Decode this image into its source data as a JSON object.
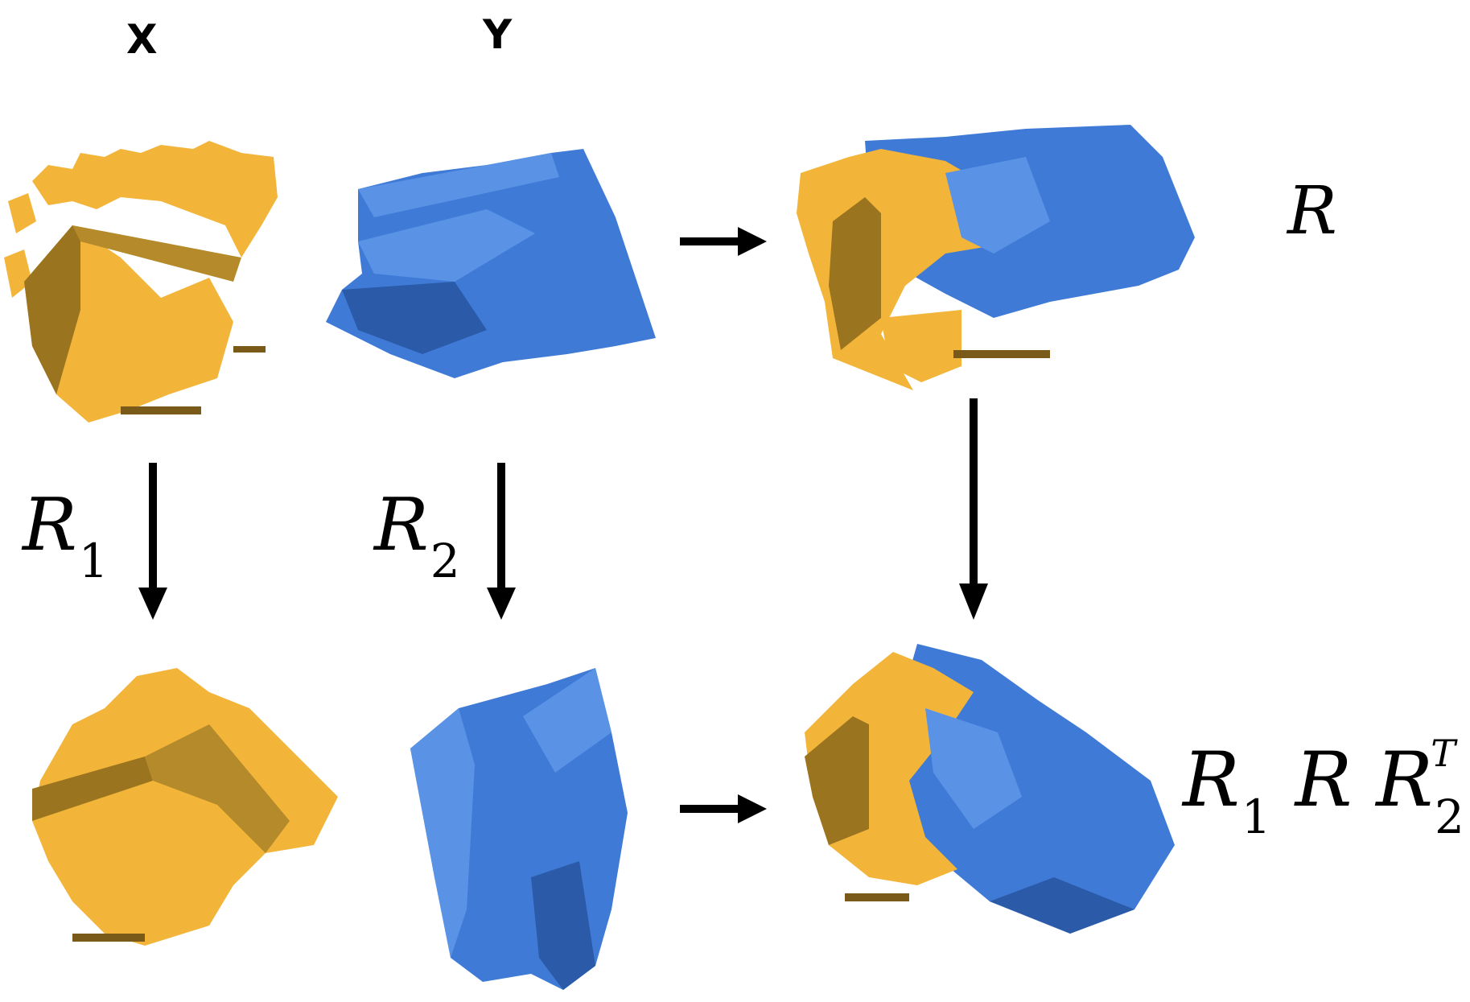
{
  "labels": {
    "x": "X",
    "y": "Y",
    "r": "R",
    "r1_base": "R",
    "r1_sub": "1",
    "r2_base": "R",
    "r2_sub": "2",
    "combo_a": "R",
    "combo_a_sub": "1",
    "combo_b": "R",
    "combo_c": "R",
    "combo_c_sub": "2",
    "combo_c_sup": "T"
  },
  "colors": {
    "source_cloud": "#F2B53A",
    "source_shadow": "#9B7420",
    "target_cloud": "#3F7BD6",
    "target_shadow": "#2A5AA8",
    "arrow": "#000000"
  },
  "icons": [
    "point-cloud-x",
    "point-cloud-y",
    "arrow-right",
    "arrow-down"
  ]
}
